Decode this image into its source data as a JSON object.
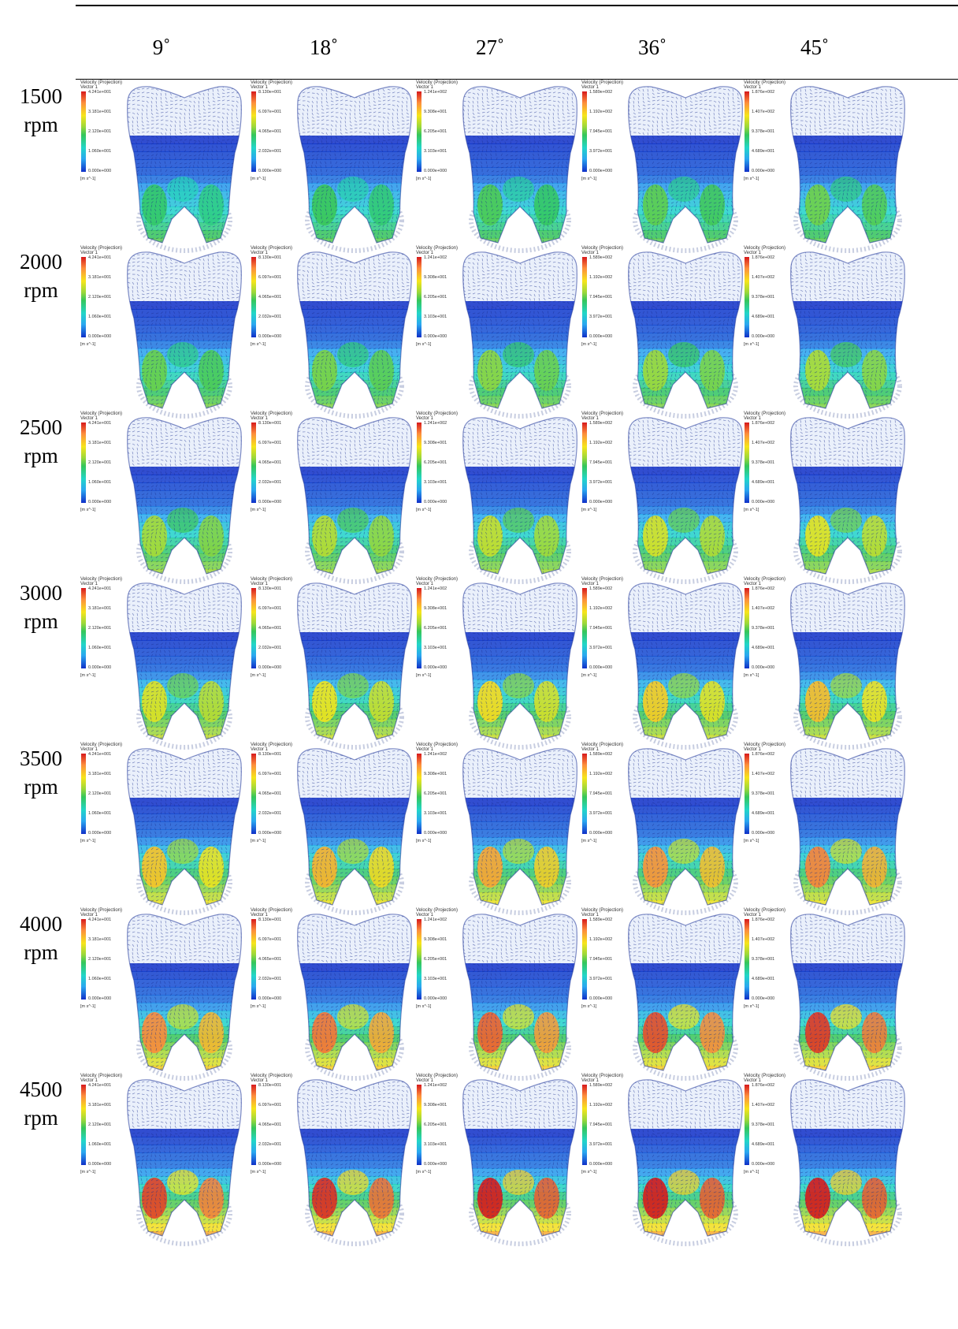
{
  "figure": {
    "column_headers": [
      "9˚",
      "18˚",
      "27˚",
      "36˚",
      "45˚"
    ],
    "row_headers": [
      {
        "value": "1500",
        "unit": "rpm"
      },
      {
        "value": "2000",
        "unit": "rpm"
      },
      {
        "value": "2500",
        "unit": "rpm"
      },
      {
        "value": "3000",
        "unit": "rpm"
      },
      {
        "value": "3500",
        "unit": "rpm"
      },
      {
        "value": "4000",
        "unit": "rpm"
      },
      {
        "value": "4500",
        "unit": "rpm"
      }
    ],
    "legend_title": "Velocity (Projection)",
    "legend_subtitle": "Vector 1",
    "legend_unit": "[m s^-1]",
    "legend_ticks": [
      [
        "4.241e+001",
        "3.181e+001",
        "2.120e+001",
        "1.060e+001",
        "0.000e+000"
      ],
      [
        "8.130e+001",
        "6.097e+001",
        "4.065e+001",
        "2.032e+001",
        "0.000e+000"
      ],
      [
        "1.241e+002",
        "9.308e+001",
        "6.205e+001",
        "3.103e+001",
        "0.000e+000"
      ],
      [
        "1.589e+002",
        "1.192e+002",
        "7.945e+001",
        "3.972e+001",
        "0.000e+000"
      ],
      [
        "1.876e+002",
        "1.407e+002",
        "9.378e+001",
        "4.689e+001",
        "0.000e+000"
      ]
    ],
    "colormap": [
      "#1030c8",
      "#2aa7f0",
      "#22d6c8",
      "#35c65a",
      "#9bd83a",
      "#f6e51b",
      "#fd8d3c",
      "#d7191c"
    ],
    "intensity_levels": [
      0.1,
      0.25,
      0.4,
      0.55,
      0.7,
      0.85,
      1.0
    ]
  }
}
